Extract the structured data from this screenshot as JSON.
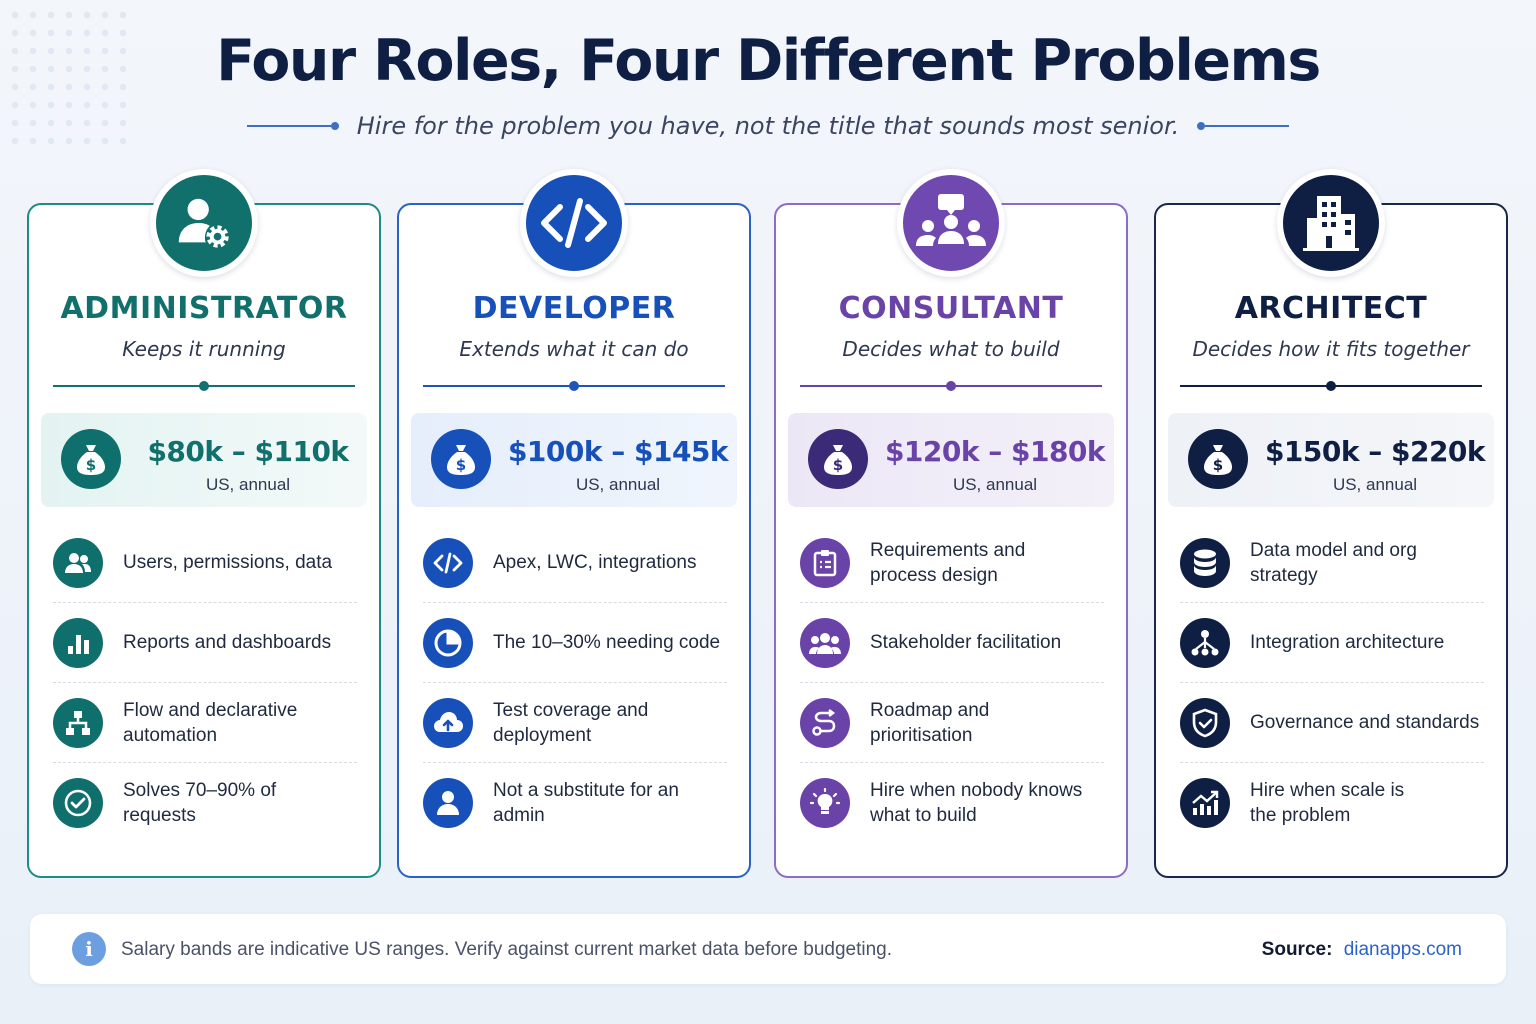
{
  "title": "Four Roles, Four Different Problems",
  "subtitle": "Hire for the problem you have, not the title that sounds most senior.",
  "colors": {
    "administrator": "#116f6c",
    "developer": "#1750b8",
    "consultant": "#6a43a8",
    "architect": "#0f1f44"
  },
  "cards": [
    {
      "role": "ADMINISTRATOR",
      "tagline": "Keeps it running",
      "badge_icon": "user-gear-icon",
      "salary": "$80k – $110k",
      "salary_note": "US, annual",
      "items": [
        {
          "icon": "users-icon",
          "text": "Users, permissions, data"
        },
        {
          "icon": "bar-chart-icon",
          "text": "Reports and dashboards"
        },
        {
          "icon": "flow-hierarchy-icon",
          "text": "Flow and declarative\nautomation"
        },
        {
          "icon": "check-circle-icon",
          "text": "Solves 70–90% of\nrequests"
        }
      ]
    },
    {
      "role": "DEVELOPER",
      "tagline": "Extends what it can do",
      "badge_icon": "code-icon",
      "salary": "$100k – $145k",
      "salary_note": "US, annual",
      "items": [
        {
          "icon": "code-icon",
          "text": "Apex, LWC, integrations"
        },
        {
          "icon": "pie-chart-icon",
          "text": "The 10–30% needing code"
        },
        {
          "icon": "cloud-upload-icon",
          "text": "Test coverage and\ndeployment"
        },
        {
          "icon": "user-icon",
          "text": "Not a substitute for an admin"
        }
      ]
    },
    {
      "role": "CONSULTANT",
      "tagline": "Decides what to build",
      "badge_icon": "group-chat-icon",
      "salary": "$120k – $180k",
      "salary_note": "US, annual",
      "items": [
        {
          "icon": "clipboard-icon",
          "text": "Requirements and\nprocess design"
        },
        {
          "icon": "team-icon",
          "text": "Stakeholder facilitation"
        },
        {
          "icon": "route-icon",
          "text": "Roadmap and\nprioritisation"
        },
        {
          "icon": "lightbulb-icon",
          "text": "Hire when nobody knows\nwhat to build"
        }
      ]
    },
    {
      "role": "ARCHITECT",
      "tagline": "Decides how it fits together",
      "badge_icon": "buildings-icon",
      "salary": "$150k – $220k",
      "salary_note": "US, annual",
      "items": [
        {
          "icon": "database-icon",
          "text": "Data model and org strategy"
        },
        {
          "icon": "network-icon",
          "text": "Integration architecture"
        },
        {
          "icon": "shield-check-icon",
          "text": "Governance and standards"
        },
        {
          "icon": "growth-chart-icon",
          "text": "Hire when scale is\nthe problem"
        }
      ]
    }
  ],
  "footer": {
    "info_icon": "info-icon",
    "note": "Salary bands are indicative US ranges. Verify against current market data before budgeting.",
    "source_label": "Source:",
    "source_link": "dianapps.com"
  }
}
